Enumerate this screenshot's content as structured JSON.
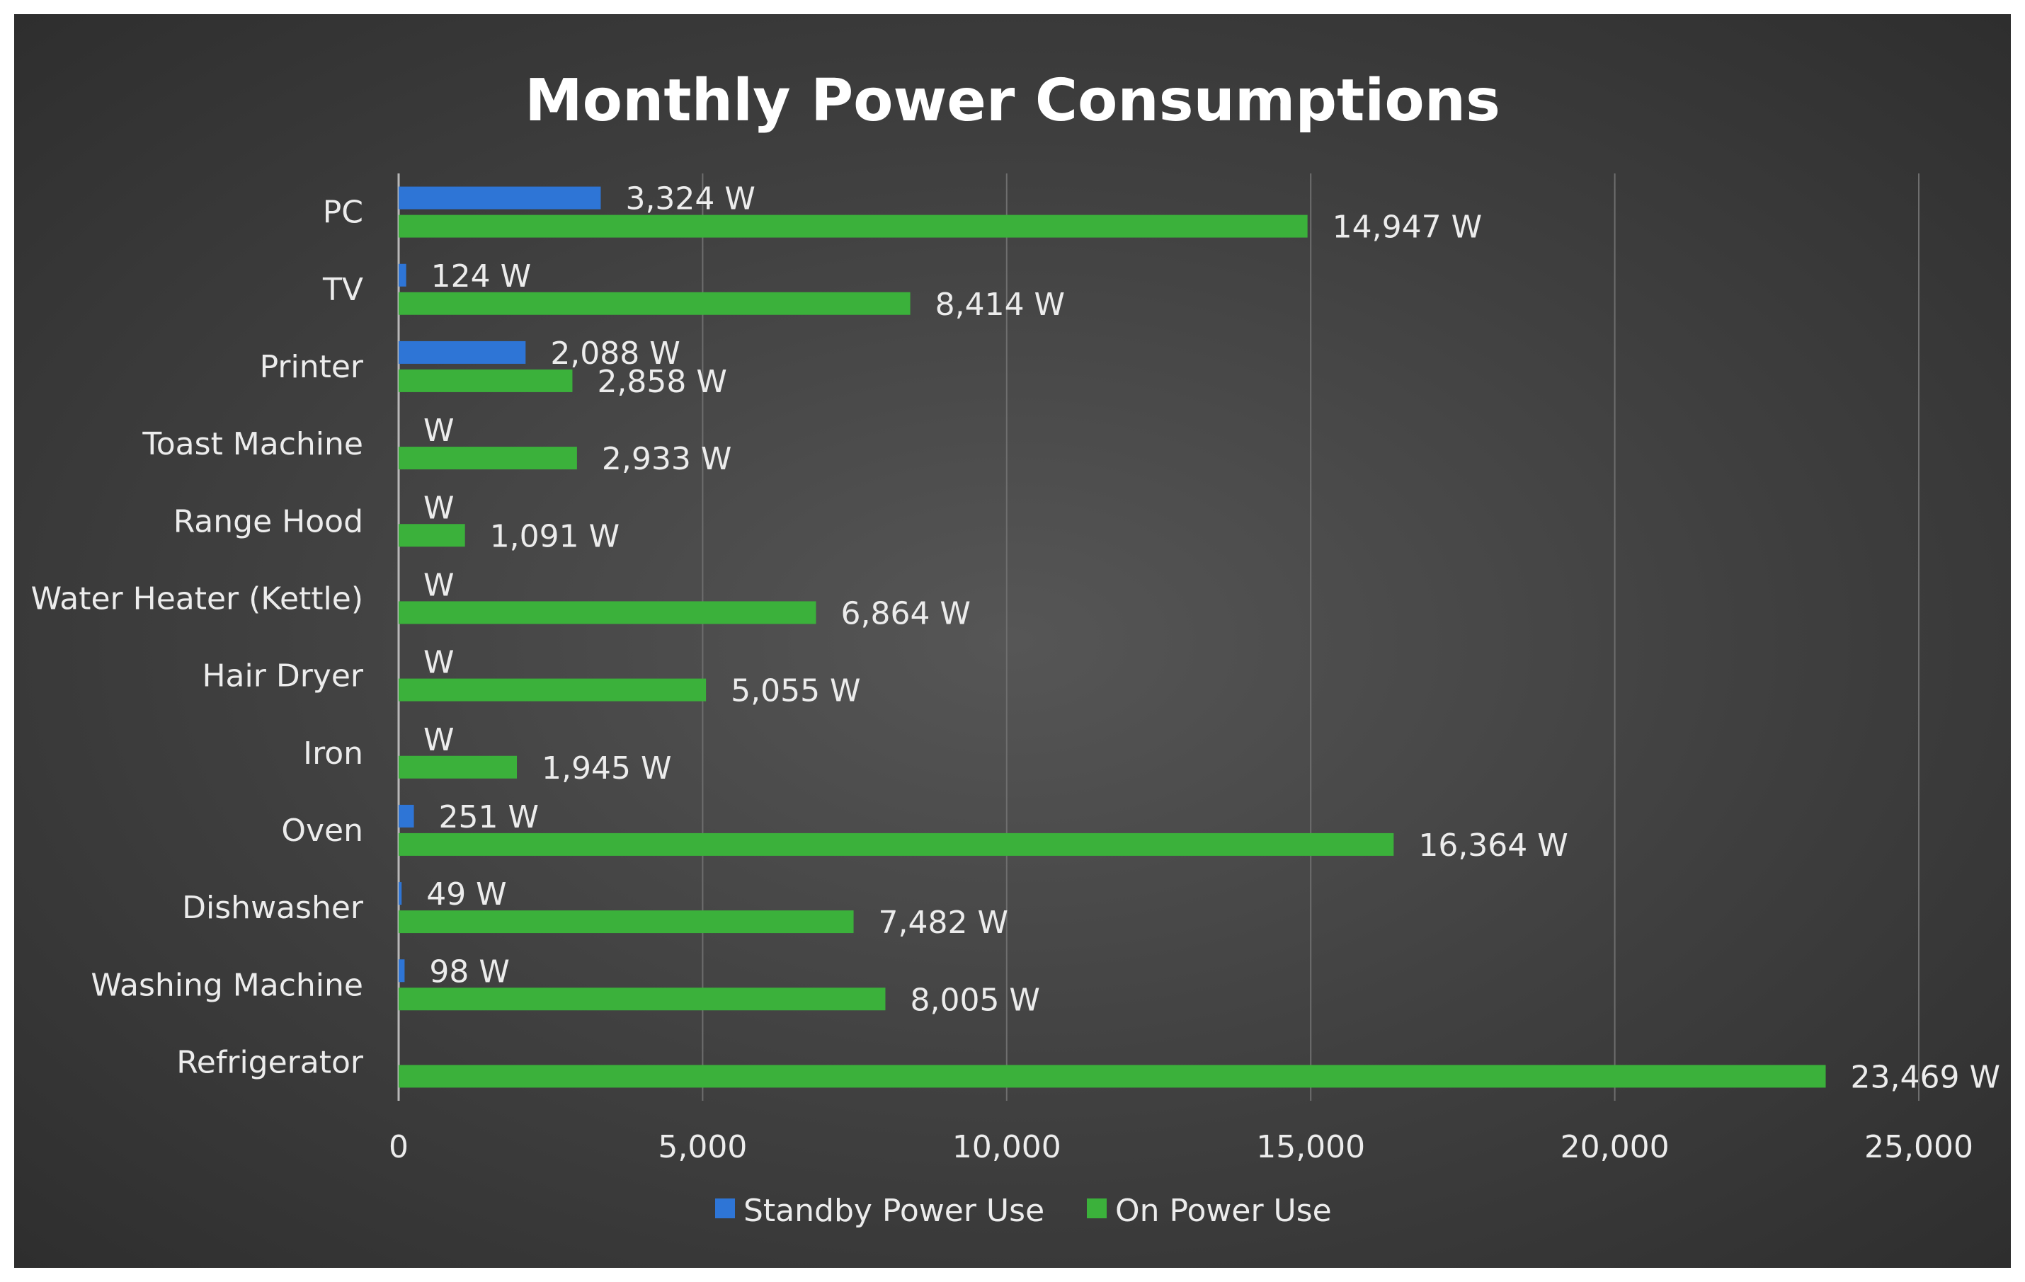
{
  "chart_data": {
    "type": "bar",
    "orientation": "horizontal",
    "title": "Monthly Power Consumptions",
    "xlabel": "",
    "ylabel": "",
    "categories": [
      "PC",
      "TV",
      "Printer",
      "Toast Machine",
      "Range Hood",
      "Water Heater (Kettle)",
      "Hair Dryer",
      "Iron",
      "Oven",
      "Dishwasher",
      "Washing Machine",
      "Refrigerator"
    ],
    "series": [
      {
        "name": "Standby Power Use",
        "color": "#2e75d6",
        "values": [
          3324,
          124,
          2088,
          0,
          0,
          0,
          0,
          0,
          251,
          49,
          98,
          null
        ],
        "labels": [
          "3,324 W",
          "124 W",
          "2,088 W",
          "W",
          "W",
          "W",
          "W",
          "W",
          "251 W",
          "49 W",
          "98 W",
          ""
        ]
      },
      {
        "name": "On Power Use",
        "color": "#3bb13b",
        "values": [
          14947,
          8414,
          2858,
          2933,
          1091,
          6864,
          5055,
          1945,
          16364,
          7482,
          8005,
          23469
        ],
        "labels": [
          "14,947 W",
          "8,414 W",
          "2,858 W",
          "2,933 W",
          "1,091 W",
          "6,864 W",
          "5,055 W",
          "1,945 W",
          "16,364 W",
          "7,482 W",
          "8,005 W",
          "23,469 W"
        ]
      }
    ],
    "xlim": [
      0,
      25000
    ],
    "xticks": [
      0,
      5000,
      10000,
      15000,
      20000,
      25000
    ],
    "xtick_labels": [
      "0",
      "5,000",
      "10,000",
      "15,000",
      "20,000",
      "25,000"
    ],
    "grid": "vertical",
    "legend": "bottom-center",
    "background": "#3f3f3f"
  }
}
